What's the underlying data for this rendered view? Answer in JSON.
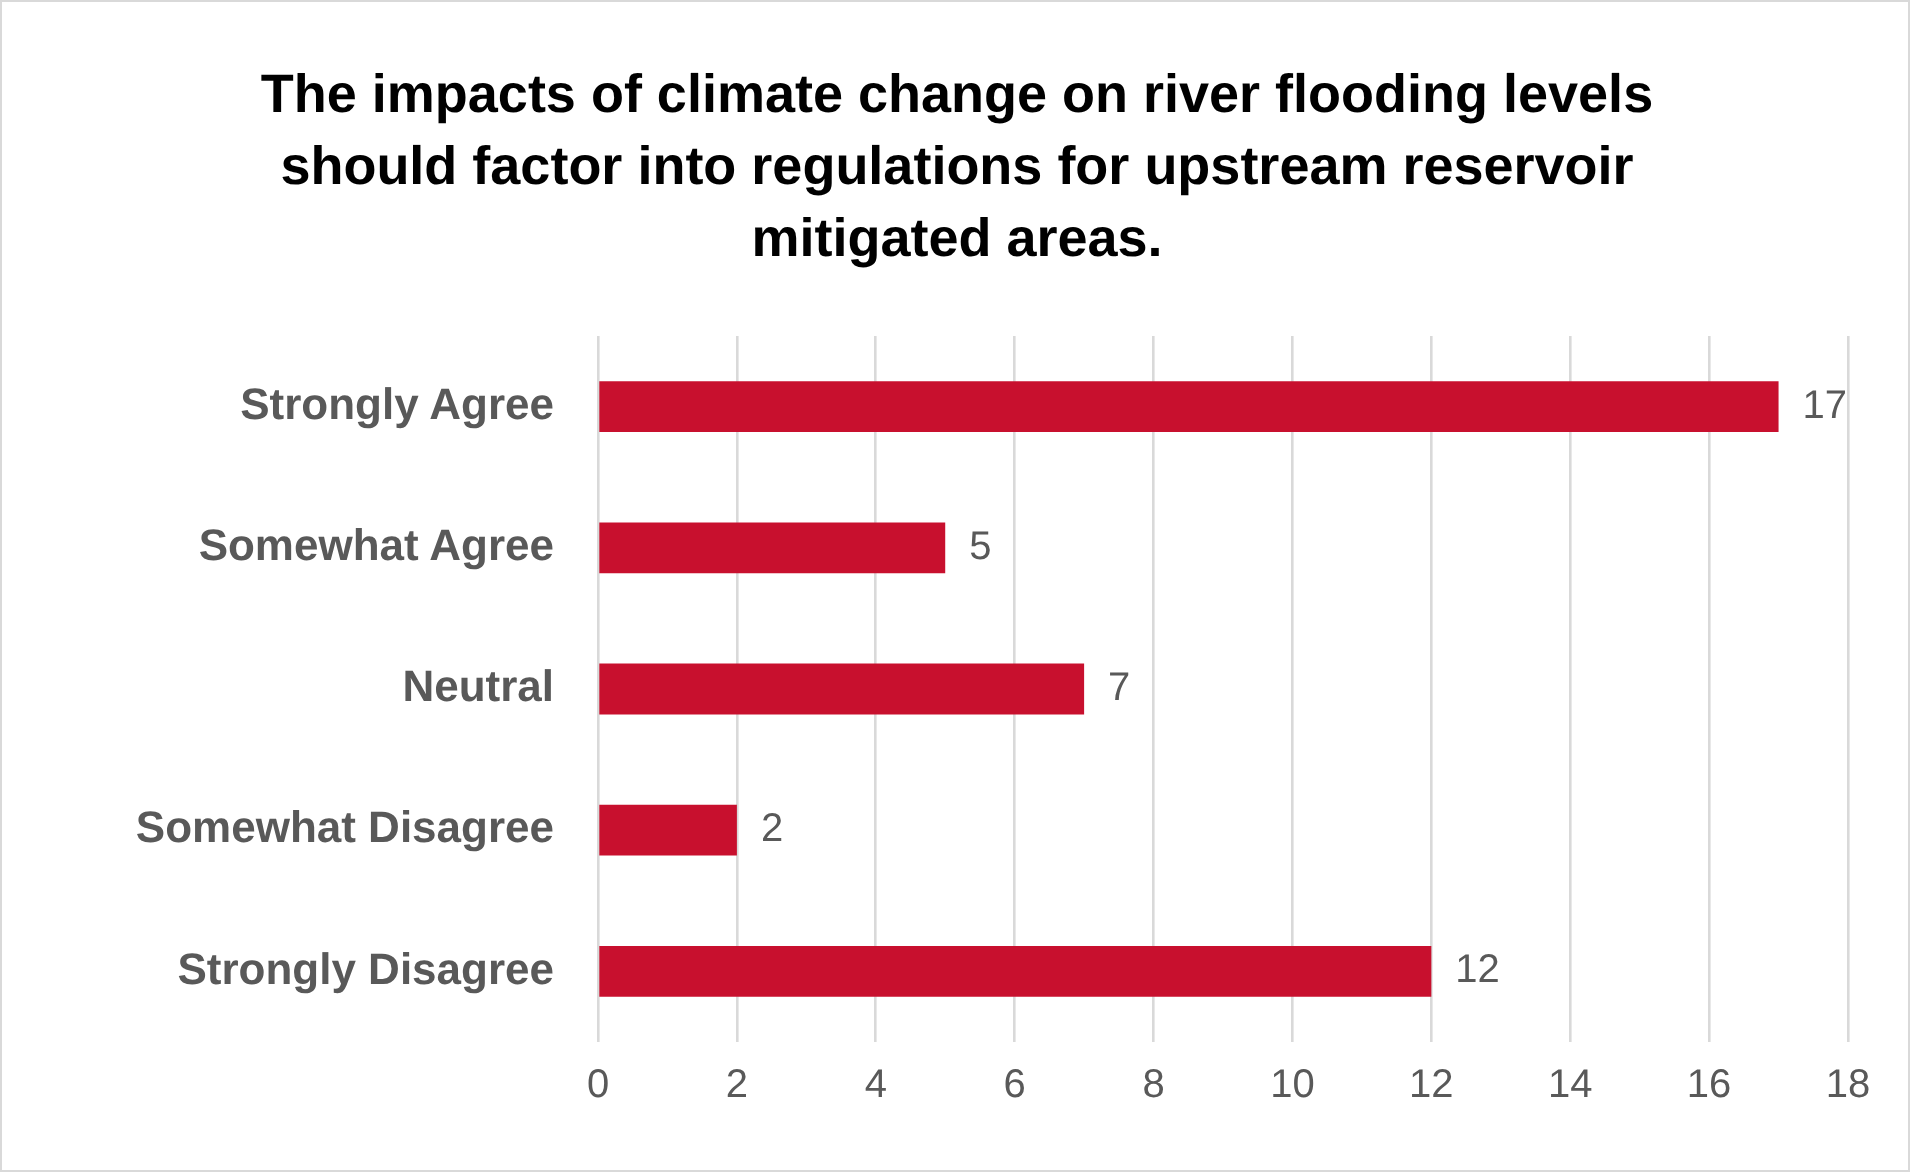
{
  "chart_data": {
    "type": "bar",
    "orientation": "horizontal",
    "title": "The impacts of climate change on river flooding levels should factor into regulations for upstream reservoir mitigated areas.",
    "categories": [
      "Strongly Agree",
      "Somewhat Agree",
      "Neutral",
      "Somewhat Disagree",
      "Strongly Disagree"
    ],
    "values": [
      17,
      5,
      7,
      2,
      12
    ],
    "color": "#c8102e",
    "xlim": [
      0,
      18
    ],
    "xticks": [
      0,
      2,
      4,
      6,
      8,
      10,
      12,
      14,
      16,
      18
    ],
    "grid": "x",
    "data_labels": true,
    "legend": false
  }
}
